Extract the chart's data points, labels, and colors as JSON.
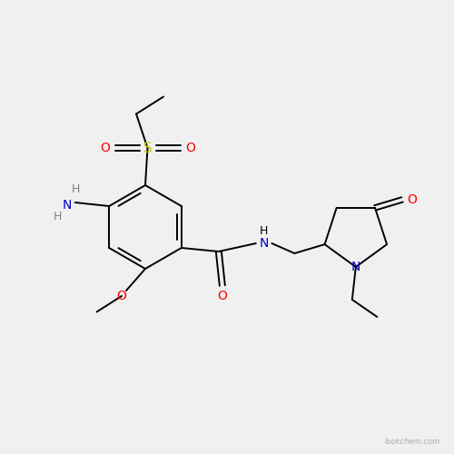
{
  "background_color": "#f0f0f0",
  "bond_color": "#000000",
  "O_color": "#ff0000",
  "N_color": "#0000cd",
  "S_color": "#cccc00",
  "H_color": "#808080",
  "watermark": "lookchem.com",
  "figsize": [
    5.0,
    5.0
  ],
  "dpi": 100,
  "xlim": [
    0,
    10
  ],
  "ylim": [
    0,
    10
  ]
}
